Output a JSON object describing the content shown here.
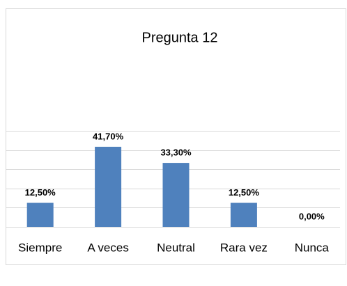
{
  "chart_data": {
    "type": "bar",
    "title": "Pregunta 12",
    "categories": [
      "Siempre",
      "A veces",
      "Neutral",
      "Rara vez",
      "Nunca"
    ],
    "values": [
      12.5,
      41.7,
      33.3,
      12.5,
      0
    ],
    "value_labels": [
      "12,50%",
      "41,70%",
      "33,30%",
      "12,50%",
      "0,00%"
    ],
    "color": "#4f81bd",
    "ylim": [
      0,
      50
    ],
    "yticks": [
      0,
      10,
      20,
      30,
      40,
      50
    ],
    "grid": true
  }
}
